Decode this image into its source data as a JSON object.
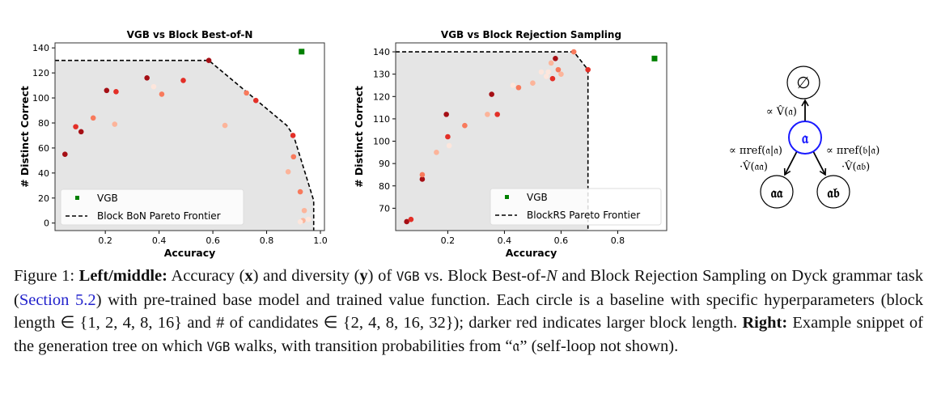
{
  "colors": {
    "vgb": "#008000",
    "frontier": "#000000",
    "shade": "#e5e5e5",
    "node_highlight": "#1a1aff",
    "dark": "#a50f15",
    "red": "#e32f27",
    "mid": "#f87a5c",
    "light": "#fcb49a",
    "verylight": "#fde6dc"
  },
  "chart_data": [
    {
      "type": "scatter",
      "title": "VGB vs Block Best-of-N",
      "xlabel": "Accuracy",
      "ylabel": "# Distinct Correct",
      "xlim": [
        0.013,
        1.015
      ],
      "ylim": [
        -6,
        144
      ],
      "xticks": [
        "0.2",
        "0.4",
        "0.6",
        "0.8",
        "1.0"
      ],
      "xtick_values": [
        0.2,
        0.4,
        0.6,
        0.8,
        1.0
      ],
      "yticks": [
        "0",
        "20",
        "40",
        "60",
        "80",
        "100",
        "120",
        "140"
      ],
      "ytick_values": [
        0,
        20,
        40,
        60,
        80,
        100,
        120,
        140
      ],
      "legend": {
        "placement": "lower-left",
        "entries": [
          "VGB",
          "Block BoN Pareto Frontier"
        ]
      },
      "vgb": {
        "x": 0.93,
        "y": 137
      },
      "frontier": [
        [
          0.013,
          130
        ],
        [
          0.585,
          130
        ],
        [
          0.875,
          78
        ],
        [
          0.9,
          70
        ],
        [
          0.975,
          18
        ],
        [
          0.975,
          -6
        ]
      ],
      "baselines": [
        {
          "x": 0.05,
          "y": 55,
          "shade": "dark"
        },
        {
          "x": 0.09,
          "y": 77,
          "shade": "red"
        },
        {
          "x": 0.11,
          "y": 73,
          "shade": "dark"
        },
        {
          "x": 0.155,
          "y": 84,
          "shade": "mid"
        },
        {
          "x": 0.205,
          "y": 106,
          "shade": "dark"
        },
        {
          "x": 0.235,
          "y": 79,
          "shade": "light"
        },
        {
          "x": 0.24,
          "y": 105,
          "shade": "red"
        },
        {
          "x": 0.355,
          "y": 116,
          "shade": "dark"
        },
        {
          "x": 0.38,
          "y": 109,
          "shade": "verylight"
        },
        {
          "x": 0.41,
          "y": 103,
          "shade": "mid"
        },
        {
          "x": 0.49,
          "y": 114,
          "shade": "red"
        },
        {
          "x": 0.585,
          "y": 130,
          "shade": "dark"
        },
        {
          "x": 0.645,
          "y": 78,
          "shade": "light"
        },
        {
          "x": 0.725,
          "y": 104,
          "shade": "mid"
        },
        {
          "x": 0.76,
          "y": 98,
          "shade": "red"
        },
        {
          "x": 0.898,
          "y": 70,
          "shade": "red"
        },
        {
          "x": 0.9,
          "y": 53,
          "shade": "mid"
        },
        {
          "x": 0.88,
          "y": 41,
          "shade": "light"
        },
        {
          "x": 0.925,
          "y": 25,
          "shade": "mid"
        },
        {
          "x": 0.94,
          "y": 10,
          "shade": "light"
        },
        {
          "x": 0.935,
          "y": 2,
          "shade": "light"
        },
        {
          "x": 0.925,
          "y": 1,
          "shade": "verylight"
        },
        {
          "x": 0.955,
          "y": 3,
          "shade": "verylight"
        }
      ]
    },
    {
      "type": "scatter",
      "title": "VGB vs Block Rejection Sampling",
      "xlabel": "Accuracy",
      "ylabel": "# Distinct Correct",
      "xlim": [
        0.016,
        0.973
      ],
      "ylim": [
        60,
        144
      ],
      "xticks": [
        "0.2",
        "0.4",
        "0.6",
        "0.8"
      ],
      "xtick_values": [
        0.2,
        0.4,
        0.6,
        0.8
      ],
      "yticks": [
        "70",
        "80",
        "90",
        "100",
        "110",
        "120",
        "130",
        "140"
      ],
      "ytick_values": [
        70,
        80,
        90,
        100,
        110,
        120,
        130,
        140
      ],
      "legend": {
        "placement": "lower-right",
        "entries": [
          "VGB",
          "BlockRS Pareto Frontier"
        ]
      },
      "vgb": {
        "x": 0.93,
        "y": 137
      },
      "frontier": [
        [
          0.016,
          140
        ],
        [
          0.645,
          140
        ],
        [
          0.695,
          132
        ],
        [
          0.695,
          60
        ]
      ],
      "baselines": [
        {
          "x": 0.055,
          "y": 64,
          "shade": "dark"
        },
        {
          "x": 0.07,
          "y": 65,
          "shade": "red"
        },
        {
          "x": 0.11,
          "y": 83,
          "shade": "dark"
        },
        {
          "x": 0.11,
          "y": 85,
          "shade": "mid"
        },
        {
          "x": 0.16,
          "y": 95,
          "shade": "light"
        },
        {
          "x": 0.195,
          "y": 112,
          "shade": "dark"
        },
        {
          "x": 0.2,
          "y": 102,
          "shade": "red"
        },
        {
          "x": 0.205,
          "y": 98,
          "shade": "verylight"
        },
        {
          "x": 0.26,
          "y": 107,
          "shade": "mid"
        },
        {
          "x": 0.34,
          "y": 112,
          "shade": "light"
        },
        {
          "x": 0.355,
          "y": 121,
          "shade": "dark"
        },
        {
          "x": 0.375,
          "y": 112,
          "shade": "red"
        },
        {
          "x": 0.43,
          "y": 125,
          "shade": "verylight"
        },
        {
          "x": 0.45,
          "y": 124,
          "shade": "mid"
        },
        {
          "x": 0.5,
          "y": 126,
          "shade": "light"
        },
        {
          "x": 0.53,
          "y": 131,
          "shade": "verylight"
        },
        {
          "x": 0.548,
          "y": 129,
          "shade": "verylight"
        },
        {
          "x": 0.555,
          "y": 131,
          "shade": "verylight"
        },
        {
          "x": 0.565,
          "y": 135,
          "shade": "light"
        },
        {
          "x": 0.57,
          "y": 128,
          "shade": "red"
        },
        {
          "x": 0.58,
          "y": 137,
          "shade": "dark"
        },
        {
          "x": 0.59,
          "y": 132,
          "shade": "mid"
        },
        {
          "x": 0.6,
          "y": 130,
          "shade": "light"
        },
        {
          "x": 0.645,
          "y": 140,
          "shade": "mid"
        },
        {
          "x": 0.695,
          "y": 132,
          "shade": "red"
        }
      ]
    }
  ],
  "tree": {
    "nodes": {
      "root": "∅",
      "current": "𝔞",
      "child_aa": "𝔞𝔞",
      "child_ab": "𝔞𝔟"
    },
    "edge_up": "∝ V̂(𝔞)",
    "edge_left_1": "∝ πref(𝔞|𝔞)",
    "edge_left_2": "·V̂(𝔞𝔞)",
    "edge_right_1": "∝ πref(𝔟|𝔞)",
    "edge_right_2": "·V̂(𝔞𝔟)"
  },
  "caption": [
    {
      "t": "Figure 1: ",
      "s": ""
    },
    {
      "t": "Left/middle:",
      "s": "b"
    },
    {
      "t": " Accuracy (",
      "s": ""
    },
    {
      "t": "x",
      "s": "b"
    },
    {
      "t": ") and diversity (",
      "s": ""
    },
    {
      "t": "y",
      "s": "b"
    },
    {
      "t": ") of ",
      "s": ""
    },
    {
      "t": "VGB",
      "s": "mono"
    },
    {
      "t": " vs. Block Best-of-",
      "s": ""
    },
    {
      "t": "N",
      "s": "it"
    },
    {
      "t": " and Block Rejection Sampling on Dyck grammar task (",
      "s": ""
    },
    {
      "t": "Section 5.2",
      "s": "link"
    },
    {
      "t": ") with pre-trained base model and trained value function. Each circle is a baseline with specific hyperparameters (block length ∈ {1, 2, 4, 8, 16} and # of candidates ∈ {2, 4, 8, 16, 32}); darker red indicates larger block length. ",
      "s": ""
    },
    {
      "t": "Right:",
      "s": "b"
    },
    {
      "t": " Example snippet of the generation tree on which ",
      "s": ""
    },
    {
      "t": "VGB",
      "s": "mono"
    },
    {
      "t": " walks, with transition probabilities from “𝔞” (self-loop not shown).",
      "s": ""
    }
  ]
}
